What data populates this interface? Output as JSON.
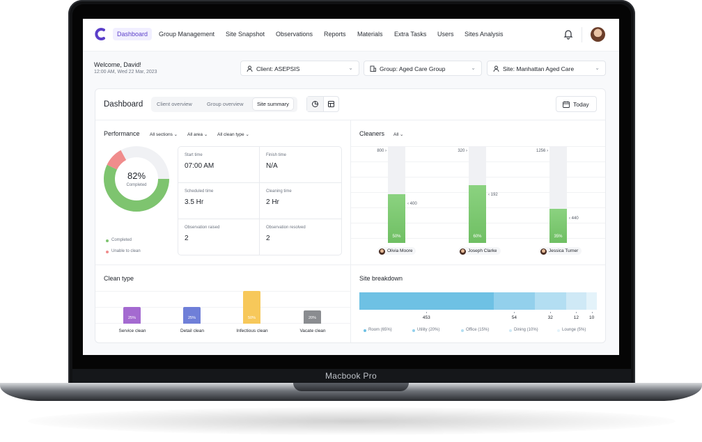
{
  "device": {
    "label": "Macbook Pro"
  },
  "nav": {
    "items": [
      "Dashboard",
      "Group Management",
      "Site Snapshot",
      "Observations",
      "Reports",
      "Materials",
      "Extra Tasks",
      "Users",
      "Sites Analysis"
    ],
    "active": "Dashboard",
    "accent": "#5b3fc9"
  },
  "header": {
    "welcome": "Welcome, David!",
    "datetime": "12:00 AM, Wed 22 Mar, 2023",
    "client_select": "Client: ASEPSIS",
    "group_select": "Group: Aged Care Group",
    "site_select": "Site: Manhattan Aged Care"
  },
  "dashboard": {
    "title": "Dashboard",
    "tabs": [
      "Client overview",
      "Group overview",
      "Site summary"
    ],
    "active_tab": "Site summary",
    "today_label": "Today"
  },
  "performance": {
    "title": "Performance",
    "filters": [
      "All sections",
      "All area",
      "All clean type"
    ],
    "completed_pct": "82%",
    "completed_label": "Completed",
    "completed_fraction": 0.82,
    "legend": [
      {
        "label": "Completed",
        "color": "#7ec46f"
      },
      {
        "label": "Unable to clean",
        "color": "#f08c8c"
      }
    ],
    "metrics": [
      {
        "label": "Start time",
        "value": "07:00 AM"
      },
      {
        "label": "Finish time",
        "value": "N/A"
      },
      {
        "label": "Scheduled time",
        "value": "3.5 Hr"
      },
      {
        "label": "Cleaning time",
        "value": "2 Hr"
      },
      {
        "label": "Observation raised",
        "value": "2"
      },
      {
        "label": "Observation resolved",
        "value": "2"
      }
    ]
  },
  "cleaners": {
    "title": "Cleaners",
    "filter": "All",
    "items": [
      {
        "name": "Olivia Moore",
        "total": "800 ›",
        "done": "‹ 400",
        "pct": "50%",
        "fraction": 0.5
      },
      {
        "name": "Joseph Clarke",
        "total": "320 ›",
        "done": "‹ 192",
        "pct": "60%",
        "fraction": 0.6
      },
      {
        "name": "Jessica Turner",
        "total": "1256 ›",
        "done": "‹ 440",
        "pct": "35%",
        "fraction": 0.35
      }
    ]
  },
  "clean_type": {
    "title": "Clean type",
    "items": [
      {
        "name": "Service clean",
        "pct": "25%",
        "fraction": 0.25,
        "color": "#a46ad0"
      },
      {
        "name": "Detail clean",
        "pct": "25%",
        "fraction": 0.25,
        "color": "#6f7fd8"
      },
      {
        "name": "Infectious clean",
        "pct": "50%",
        "fraction": 0.5,
        "color": "#f7c85a"
      },
      {
        "name": "Vacate clean",
        "pct": "20%",
        "fraction": 0.2,
        "color": "#8a8c90"
      }
    ]
  },
  "site_breakdown": {
    "title": "Site breakdown",
    "segments": [
      {
        "label": "Room (65%)",
        "value": "453",
        "percent": 65,
        "color": "#6ec1e4"
      },
      {
        "label": "Utility (20%)",
        "value": "54",
        "percent": 20,
        "color": "#93d0ec"
      },
      {
        "label": "Office (15%)",
        "value": "32",
        "percent": 15,
        "color": "#b3def2"
      },
      {
        "label": "Dining (10%)",
        "value": "12",
        "percent": 10,
        "color": "#cfe9f6"
      },
      {
        "label": "Lounge (5%)",
        "value": "10",
        "percent": 5,
        "color": "#e4f3fa"
      }
    ]
  }
}
